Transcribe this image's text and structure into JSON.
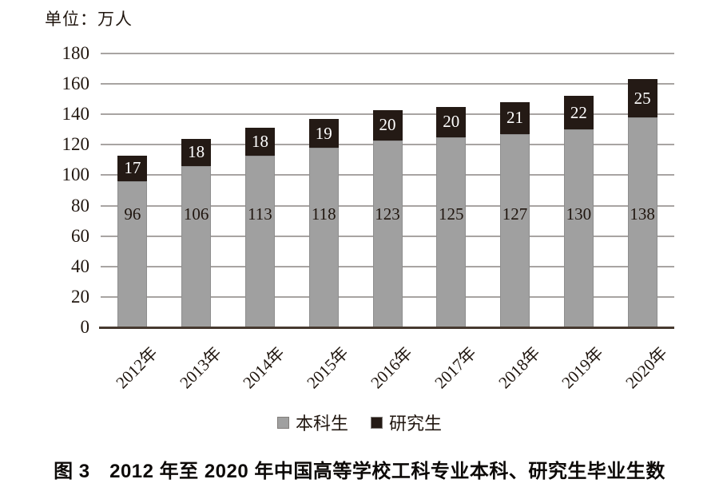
{
  "figure": {
    "unit_label": "单位：万人",
    "caption": "图 3　2012 年至 2020 年中国高等学校工科专业本科、研究生毕业生数"
  },
  "chart_data": {
    "type": "bar",
    "stacked": true,
    "title": "图 3　2012 年至 2020 年中国高等学校工科专业本科、研究生毕业生数",
    "unit_label": "单位：万人",
    "categories": [
      "2012年",
      "2013年",
      "2014年",
      "2015年",
      "2016年",
      "2017年",
      "2018年",
      "2019年",
      "2020年"
    ],
    "series": [
      {
        "name": "本科生",
        "color": "#a0a0a0",
        "label_color": "#20160f",
        "values": [
          96,
          106,
          113,
          118,
          123,
          125,
          127,
          130,
          138
        ]
      },
      {
        "name": "研究生",
        "color": "#241a15",
        "label_color": "#ffffff",
        "values": [
          17,
          18,
          18,
          19,
          20,
          20,
          21,
          22,
          25
        ]
      }
    ],
    "ylim": [
      0,
      180
    ],
    "yticks": [
      0,
      20,
      40,
      60,
      80,
      100,
      120,
      140,
      160,
      180
    ],
    "grid": true,
    "legend_position": "bottom"
  },
  "legend": {
    "items": [
      {
        "label": "本科生",
        "color": "#a0a0a0"
      },
      {
        "label": "研究生",
        "color": "#241a15"
      }
    ]
  },
  "colors": {
    "background": "#ffffff",
    "gridline": "#a8a4a2",
    "axis": "#46392f",
    "text": "#20160f",
    "bar_undergraduate": "#a0a0a0",
    "bar_graduate": "#241a15",
    "bar_border": "#8e8e8e"
  }
}
